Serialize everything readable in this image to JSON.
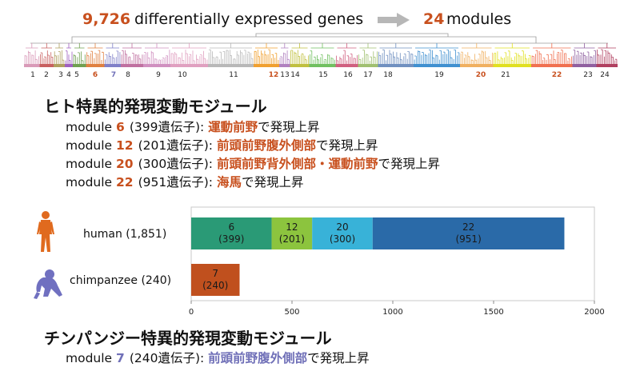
{
  "headline": {
    "gene_count": "9,726",
    "gene_text": "differentially expressed genes",
    "module_count": "24",
    "module_text": "modules"
  },
  "dendrogram": {
    "module_labels": [
      {
        "label": "1",
        "highlight": false
      },
      {
        "label": "2",
        "highlight": false
      },
      {
        "label": "3",
        "highlight": false
      },
      {
        "label": "4",
        "highlight": false
      },
      {
        "label": "5",
        "highlight": false
      },
      {
        "label": "6",
        "highlight": "human"
      },
      {
        "label": "7",
        "highlight": "chimp"
      },
      {
        "label": "8",
        "highlight": false
      },
      {
        "label": "9",
        "highlight": false
      },
      {
        "label": "10",
        "highlight": false
      },
      {
        "label": "11",
        "highlight": false
      },
      {
        "label": "12",
        "highlight": "human"
      },
      {
        "label": "13",
        "highlight": false
      },
      {
        "label": "14",
        "highlight": false
      },
      {
        "label": "15",
        "highlight": false
      },
      {
        "label": "16",
        "highlight": false
      },
      {
        "label": "17",
        "highlight": false
      },
      {
        "label": "18",
        "highlight": false
      },
      {
        "label": "19",
        "highlight": false
      },
      {
        "label": "20",
        "highlight": "human"
      },
      {
        "label": "21",
        "highlight": false
      },
      {
        "label": "22",
        "highlight": "human"
      },
      {
        "label": "23",
        "highlight": false
      },
      {
        "label": "24",
        "highlight": false
      }
    ],
    "colors": {
      "human_accent": "#c8501e",
      "chimp_accent": "#7070b8"
    }
  },
  "human_section": {
    "title": "ヒト特異的発現変動モジュール",
    "modules": [
      {
        "prefix": "module ",
        "num": "6",
        "count": "(399遺伝子): ",
        "region": "運動前野",
        "suffix": "で発現上昇"
      },
      {
        "prefix": "module ",
        "num": "12",
        "count": "(201遺伝子): ",
        "region": "前頭前野腹外側部",
        "suffix": "で発現上昇"
      },
      {
        "prefix": "module ",
        "num": "20",
        "count": "(300遺伝子): ",
        "region": "前頭前野背外側部・運動前野",
        "suffix": "で発現上昇"
      },
      {
        "prefix": "module ",
        "num": "22",
        "count": "(951遺伝子): ",
        "region": "海馬",
        "suffix": "で発現上昇"
      }
    ]
  },
  "chimp_section": {
    "title": "チンパンジー特異的発現変動モジュール",
    "modules": [
      {
        "prefix": "module ",
        "num": "7",
        "count": "(240遺伝子): ",
        "region": "前頭前野腹外側部",
        "suffix": "で発現上昇"
      }
    ]
  },
  "chart_data": {
    "type": "bar",
    "orientation": "horizontal",
    "stacked": true,
    "categories": [
      "human (1,851)",
      "chimpanzee (240)"
    ],
    "series": [
      {
        "category": "human (1,851)",
        "segments": [
          {
            "module": "6",
            "value": 399,
            "label": "(399)",
            "color": "#2a9a76"
          },
          {
            "module": "12",
            "value": 201,
            "label": "(201)",
            "color": "#8cc43e"
          },
          {
            "module": "20",
            "value": 300,
            "label": "(300)",
            "color": "#38b2d8"
          },
          {
            "module": "22",
            "value": 951,
            "label": "(951)",
            "color": "#2a6aa8"
          }
        ]
      },
      {
        "category": "chimpanzee (240)",
        "segments": [
          {
            "module": "7",
            "value": 240,
            "label": "(240)",
            "color": "#c0501e"
          }
        ]
      }
    ],
    "xlim": [
      0,
      2000
    ],
    "xticks": [
      "0",
      "500",
      "1000",
      "1500",
      "2000"
    ],
    "legend": "none",
    "icons": {
      "human": "human-silhouette-icon",
      "chimp": "chimpanzee-silhouette-icon"
    },
    "icon_colors": {
      "human": "#e06a1e",
      "chimp": "#7070c0"
    }
  }
}
